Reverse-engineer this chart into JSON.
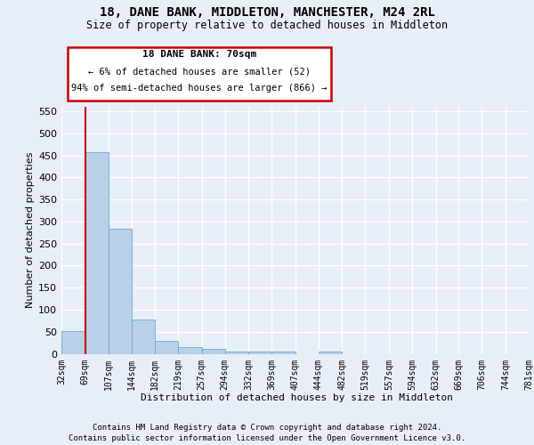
{
  "title": "18, DANE BANK, MIDDLETON, MANCHESTER, M24 2RL",
  "subtitle": "Size of property relative to detached houses in Middleton",
  "xlabel": "Distribution of detached houses by size in Middleton",
  "ylabel": "Number of detached properties",
  "footer_line1": "Contains HM Land Registry data © Crown copyright and database right 2024.",
  "footer_line2": "Contains public sector information licensed under the Open Government Licence v3.0.",
  "annotation_title": "18 DANE BANK: 70sqm",
  "annotation_line1": "← 6% of detached houses are smaller (52)",
  "annotation_line2": "94% of semi-detached houses are larger (866) →",
  "property_size": 70,
  "bar_edges": [
    32,
    69,
    107,
    144,
    182,
    219,
    257,
    294,
    332,
    369,
    407,
    444,
    482,
    519,
    557,
    594,
    632,
    669,
    706,
    744,
    781
  ],
  "bar_heights": [
    52,
    457,
    283,
    78,
    30,
    15,
    11,
    5,
    5,
    6,
    0,
    5,
    0,
    0,
    0,
    0,
    0,
    0,
    0,
    0
  ],
  "bar_color": "#b8d0e8",
  "bar_edge_color": "#6aaad4",
  "red_line_color": "#cc0000",
  "annotation_box_color": "#cc0000",
  "background_color": "#e8eef8",
  "plot_bg_color": "#e8eef8",
  "grid_color": "#ffffff",
  "ylim": [
    0,
    560
  ],
  "yticks": [
    0,
    50,
    100,
    150,
    200,
    250,
    300,
    350,
    400,
    450,
    500,
    550
  ]
}
